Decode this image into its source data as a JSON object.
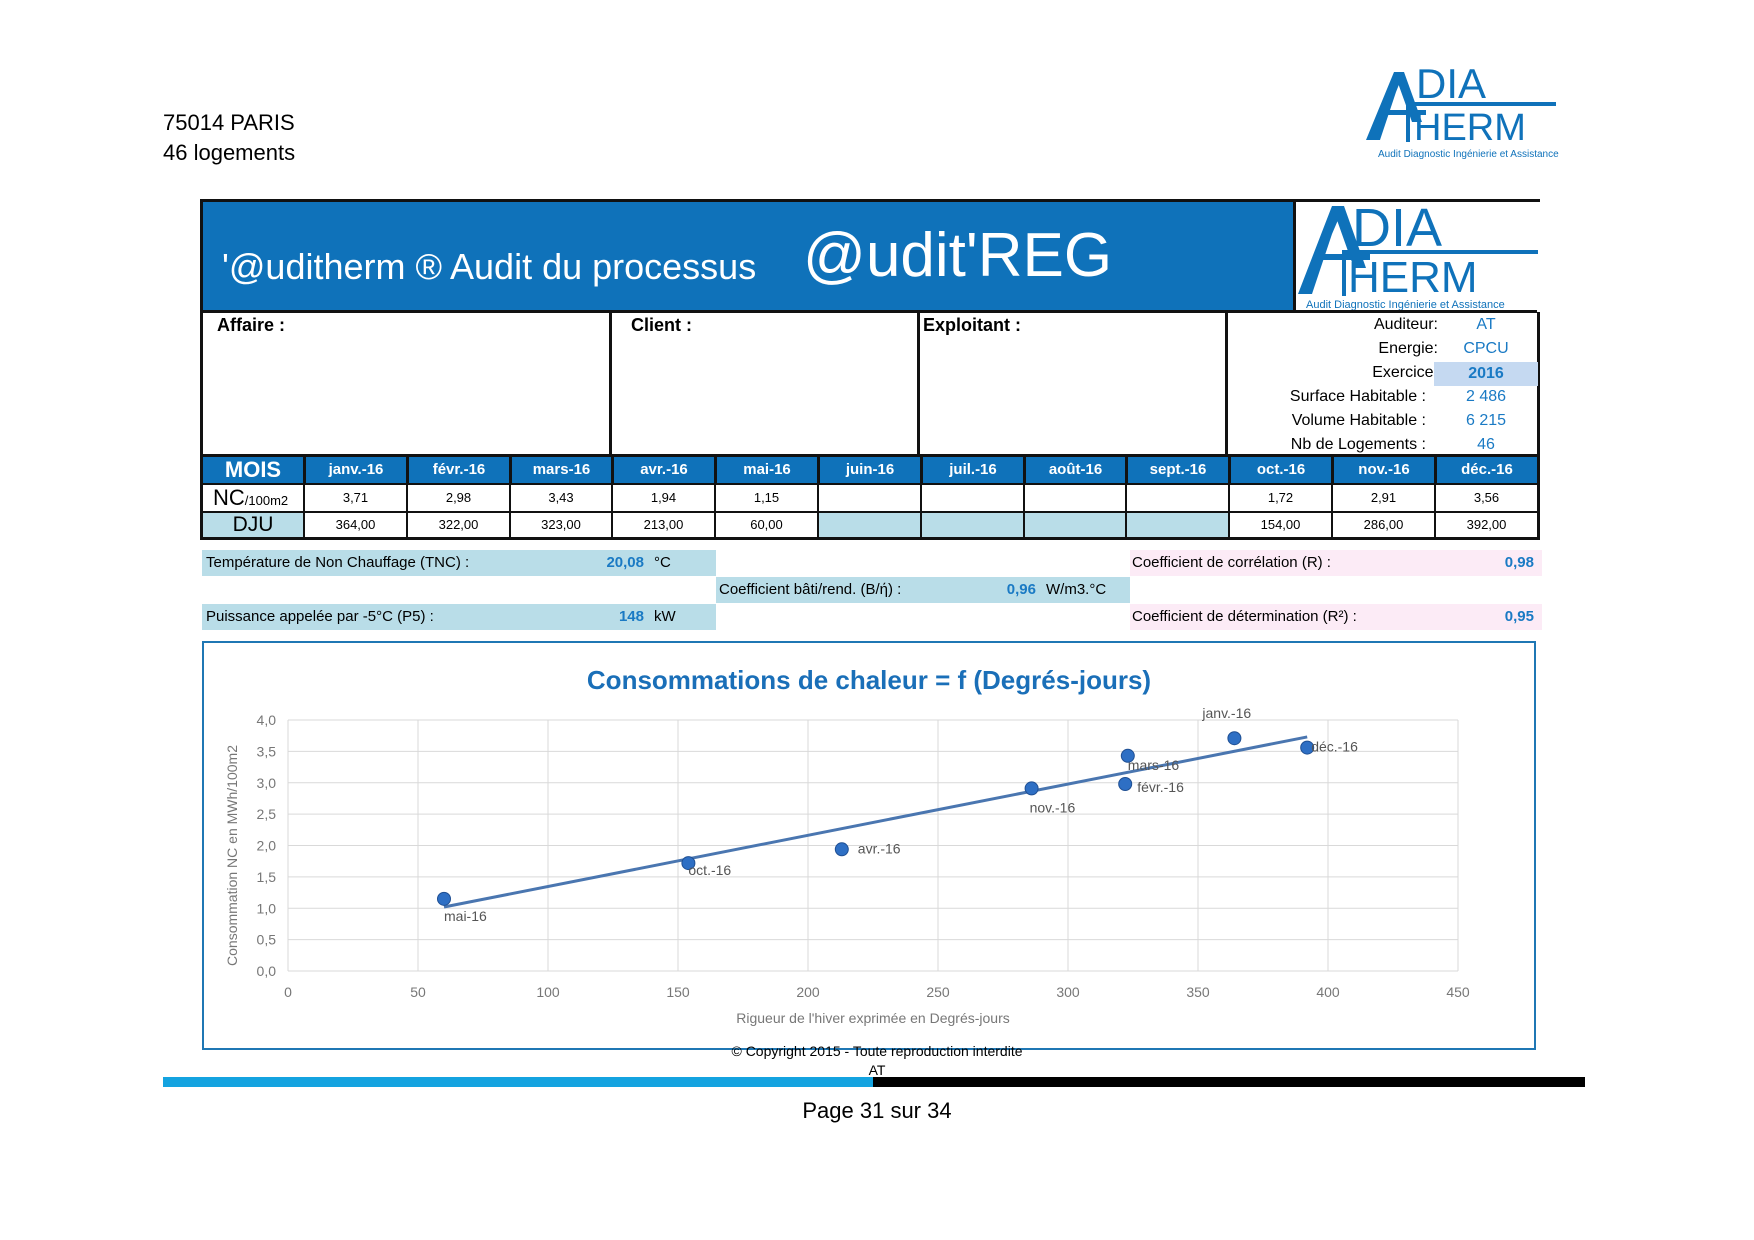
{
  "header": {
    "address_line1": "75014 PARIS",
    "address_line2": "46 logements",
    "logo": {
      "letter": "A",
      "dia": "DIA",
      "therm": "HERM",
      "tagline": "Audit Diagnostic Ingénierie et Assistance"
    }
  },
  "banner": {
    "prefix": "'@uditherm ®  Audit du processus",
    "title": "@udit'REG"
  },
  "info": {
    "affaire_label": "Affaire :",
    "client_label": "Client :",
    "exploitant_label": "Exploitant :",
    "fields": [
      {
        "label": "Auditeur:",
        "value": "AT"
      },
      {
        "label": "Energie:",
        "value": "CPCU"
      },
      {
        "label": "Exercice:",
        "value": "2016"
      },
      {
        "label": "Surface Habitable :",
        "value": "2 486"
      },
      {
        "label": "Volume Habitable :",
        "value": "6 215"
      },
      {
        "label": "Nb de Logements :",
        "value": "46"
      }
    ]
  },
  "table": {
    "mois_label": "MOIS",
    "nc_label": "NC",
    "nc_unit": "/100m2",
    "dju_label": "DJU",
    "months": [
      "janv.-16",
      "févr.-16",
      "mars-16",
      "avr.-16",
      "mai-16",
      "juin-16",
      "juil.-16",
      "août-16",
      "sept.-16",
      "oct.-16",
      "nov.-16",
      "déc.-16"
    ],
    "nc": [
      "3,71",
      "2,98",
      "3,43",
      "1,94",
      "1,15",
      "",
      "",
      "",
      "",
      "1,72",
      "2,91",
      "3,56"
    ],
    "dju": [
      "364,00",
      "322,00",
      "323,00",
      "213,00",
      "60,00",
      "",
      "",
      "",
      "",
      "154,00",
      "286,00",
      "392,00"
    ]
  },
  "params": {
    "tnc_label": "Température de Non Chauffage (TNC) :",
    "tnc_value": "20,08",
    "tnc_unit": "°C",
    "p5_label": "Puissance appelée par -5°C (P5) :",
    "p5_value": "148",
    "p5_unit": "kW",
    "b_label": "Coefficient bâti/rend. (B/ή) :",
    "b_value": "0,96",
    "b_unit": "W/m3.°C",
    "r_label": "Coefficient de corrélation (R) :",
    "r_value": "0,98",
    "r2_label": "Coefficient de détermination (R²) :",
    "r2_value": "0,95"
  },
  "chart_data": {
    "type": "scatter",
    "title": "Consommations de chaleur = f (Degrés-jours)",
    "xlabel": "Rigueur de l'hiver exprimée en Degrés-jours",
    "ylabel": "Consommation NC en MWh/100m2",
    "xlim": [
      0,
      450
    ],
    "ylim": [
      0,
      4
    ],
    "xticks": [
      "0",
      "50",
      "100",
      "150",
      "200",
      "250",
      "300",
      "350",
      "400",
      "450"
    ],
    "yticks": [
      "0,0",
      "0,5",
      "1,0",
      "1,5",
      "2,0",
      "2,5",
      "3,0",
      "3,5",
      "4,0"
    ],
    "grid": true,
    "points": [
      {
        "label": "janv.-16",
        "x": 364,
        "y": 3.71
      },
      {
        "label": "févr.-16",
        "x": 322,
        "y": 2.98
      },
      {
        "label": "mars-16",
        "x": 323,
        "y": 3.43
      },
      {
        "label": "avr.-16",
        "x": 213,
        "y": 1.94
      },
      {
        "label": "mai-16",
        "x": 60,
        "y": 1.15
      },
      {
        "label": "oct.-16",
        "x": 154,
        "y": 1.72
      },
      {
        "label": "nov.-16",
        "x": 286,
        "y": 2.91
      },
      {
        "label": "déc.-16",
        "x": 392,
        "y": 3.56
      }
    ],
    "trendline": {
      "x": [
        60,
        392
      ],
      "y": [
        1.02,
        3.73
      ]
    },
    "colors": {
      "title": "#1a6fb8",
      "trend": "#4a76b0",
      "point": "#2e6fc4",
      "grid": "#d9d9d9"
    }
  },
  "footer": {
    "copyright": "© Copyright 2015 - Toute reproduction interdite",
    "author": "AT",
    "page": "Page 31 sur 34",
    "colors": {
      "bar_left": "#14a3e0",
      "bar_right": "#000000"
    }
  }
}
